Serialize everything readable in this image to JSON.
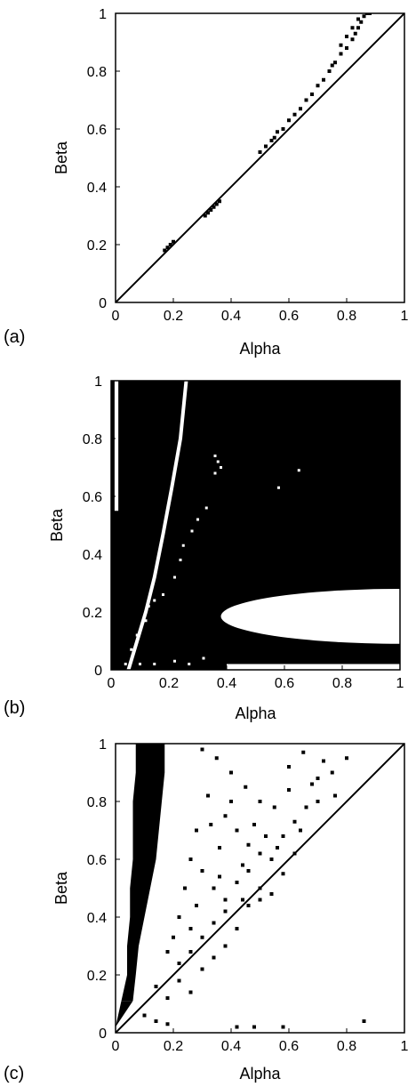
{
  "chart_data": [
    {
      "panel": "(a)",
      "type": "scatter",
      "xlabel": "Alpha",
      "ylabel": "Beta",
      "xlim": [
        0,
        1
      ],
      "ylim": [
        0,
        1
      ],
      "xticks": [
        "0",
        "0.2",
        "0.4",
        "0.6",
        "0.8",
        "1"
      ],
      "yticks": [
        "0",
        "0.2",
        "0.4",
        "0.6",
        "0.8",
        "1"
      ],
      "grid": false,
      "diagonal_line": true,
      "points": [
        [
          0.17,
          0.18
        ],
        [
          0.18,
          0.19
        ],
        [
          0.19,
          0.2
        ],
        [
          0.2,
          0.21
        ],
        [
          0.31,
          0.3
        ],
        [
          0.32,
          0.31
        ],
        [
          0.33,
          0.32
        ],
        [
          0.34,
          0.33
        ],
        [
          0.35,
          0.34
        ],
        [
          0.36,
          0.35
        ],
        [
          0.5,
          0.52
        ],
        [
          0.52,
          0.54
        ],
        [
          0.54,
          0.56
        ],
        [
          0.55,
          0.57
        ],
        [
          0.56,
          0.59
        ],
        [
          0.58,
          0.6
        ],
        [
          0.6,
          0.63
        ],
        [
          0.62,
          0.65
        ],
        [
          0.64,
          0.67
        ],
        [
          0.66,
          0.7
        ],
        [
          0.68,
          0.72
        ],
        [
          0.7,
          0.75
        ],
        [
          0.72,
          0.77
        ],
        [
          0.74,
          0.8
        ],
        [
          0.75,
          0.82
        ],
        [
          0.76,
          0.83
        ],
        [
          0.78,
          0.86
        ],
        [
          0.8,
          0.88
        ],
        [
          0.82,
          0.91
        ],
        [
          0.83,
          0.93
        ],
        [
          0.84,
          0.95
        ],
        [
          0.85,
          0.97
        ],
        [
          0.86,
          0.99
        ],
        [
          0.87,
          1.0
        ],
        [
          0.88,
          1.0
        ],
        [
          0.84,
          0.98
        ],
        [
          0.82,
          0.95
        ],
        [
          0.8,
          0.92
        ],
        [
          0.78,
          0.89
        ]
      ]
    },
    {
      "panel": "(b)",
      "type": "heatmap",
      "xlabel": "Alpha",
      "ylabel": "Beta",
      "xlim": [
        0,
        1
      ],
      "ylim": [
        0,
        1
      ],
      "xticks": [
        "0",
        "0.2",
        "0.4",
        "0.6",
        "0.8",
        "1"
      ],
      "yticks": [
        "0",
        "0.2",
        "0.4",
        "0.6",
        "0.8",
        "1"
      ],
      "background": "#000000",
      "white_regions": {
        "left_stripe": {
          "alpha_range": [
            0.012,
            0.025
          ],
          "beta_range": [
            0.55,
            1.0
          ]
        },
        "curve_x_vs_beta": [
          [
            0.06,
            0.0
          ],
          [
            0.09,
            0.1
          ],
          [
            0.12,
            0.2
          ],
          [
            0.15,
            0.32
          ],
          [
            0.18,
            0.47
          ],
          [
            0.21,
            0.63
          ],
          [
            0.24,
            0.8
          ],
          [
            0.26,
            1.0
          ]
        ],
        "ellipse": {
          "alpha_start": 0.38,
          "alpha_end": 1.0,
          "beta_center": 0.185,
          "beta_halfwidth": 0.095
        },
        "bottom_strip": {
          "alpha_range": [
            0.4,
            1.0
          ],
          "beta_range": [
            0.0,
            0.02
          ]
        }
      },
      "white_points": [
        [
          0.36,
          0.74
        ],
        [
          0.37,
          0.72
        ],
        [
          0.38,
          0.7
        ],
        [
          0.36,
          0.68
        ],
        [
          0.65,
          0.69
        ],
        [
          0.58,
          0.63
        ],
        [
          0.33,
          0.56
        ],
        [
          0.3,
          0.52
        ],
        [
          0.28,
          0.48
        ],
        [
          0.25,
          0.43
        ],
        [
          0.24,
          0.38
        ],
        [
          0.22,
          0.32
        ],
        [
          0.18,
          0.26
        ],
        [
          0.15,
          0.24
        ],
        [
          0.13,
          0.22
        ],
        [
          0.12,
          0.17
        ],
        [
          0.09,
          0.12
        ],
        [
          0.07,
          0.07
        ],
        [
          0.05,
          0.02
        ],
        [
          0.1,
          0.02
        ],
        [
          0.15,
          0.02
        ],
        [
          0.22,
          0.03
        ],
        [
          0.27,
          0.02
        ],
        [
          0.32,
          0.04
        ]
      ]
    },
    {
      "panel": "(c)",
      "type": "scatter",
      "xlabel": "Alpha",
      "ylabel": "Beta",
      "xlim": [
        0,
        1
      ],
      "ylim": [
        0,
        1
      ],
      "xticks": [
        "0",
        "0.2",
        "0.4",
        "0.6",
        "0.8",
        "1"
      ],
      "yticks": [
        "0",
        "0.2",
        "0.4",
        "0.6",
        "0.8",
        "1"
      ],
      "diagonal_line": true,
      "dense_band": [
        [
          0.0,
          0.0,
          0.02
        ],
        [
          0.02,
          0.06,
          0.11
        ],
        [
          0.04,
          0.07,
          0.2
        ],
        [
          0.04,
          0.08,
          0.3
        ],
        [
          0.05,
          0.1,
          0.4
        ],
        [
          0.05,
          0.12,
          0.5
        ],
        [
          0.06,
          0.14,
          0.6
        ],
        [
          0.06,
          0.15,
          0.7
        ],
        [
          0.06,
          0.16,
          0.8
        ],
        [
          0.07,
          0.17,
          0.9
        ],
        [
          0.07,
          0.17,
          1.0
        ]
      ],
      "points": [
        [
          0.3,
          0.98
        ],
        [
          0.35,
          0.95
        ],
        [
          0.4,
          0.9
        ],
        [
          0.45,
          0.85
        ],
        [
          0.5,
          0.8
        ],
        [
          0.55,
          0.78
        ],
        [
          0.6,
          0.92
        ],
        [
          0.65,
          0.97
        ],
        [
          0.7,
          0.88
        ],
        [
          0.75,
          0.9
        ],
        [
          0.8,
          0.95
        ],
        [
          0.32,
          0.82
        ],
        [
          0.38,
          0.75
        ],
        [
          0.42,
          0.7
        ],
        [
          0.46,
          0.65
        ],
        [
          0.5,
          0.62
        ],
        [
          0.54,
          0.6
        ],
        [
          0.58,
          0.68
        ],
        [
          0.62,
          0.73
        ],
        [
          0.66,
          0.78
        ],
        [
          0.7,
          0.8
        ],
        [
          0.26,
          0.6
        ],
        [
          0.3,
          0.56
        ],
        [
          0.34,
          0.5
        ],
        [
          0.38,
          0.46
        ],
        [
          0.42,
          0.52
        ],
        [
          0.46,
          0.56
        ],
        [
          0.5,
          0.5
        ],
        [
          0.54,
          0.48
        ],
        [
          0.58,
          0.55
        ],
        [
          0.62,
          0.62
        ],
        [
          0.22,
          0.4
        ],
        [
          0.26,
          0.36
        ],
        [
          0.3,
          0.33
        ],
        [
          0.34,
          0.38
        ],
        [
          0.38,
          0.42
        ],
        [
          0.42,
          0.36
        ],
        [
          0.46,
          0.44
        ],
        [
          0.5,
          0.46
        ],
        [
          0.18,
          0.28
        ],
        [
          0.22,
          0.24
        ],
        [
          0.26,
          0.28
        ],
        [
          0.3,
          0.22
        ],
        [
          0.34,
          0.26
        ],
        [
          0.38,
          0.3
        ],
        [
          0.14,
          0.16
        ],
        [
          0.18,
          0.12
        ],
        [
          0.22,
          0.18
        ],
        [
          0.26,
          0.14
        ],
        [
          0.1,
          0.06
        ],
        [
          0.14,
          0.04
        ],
        [
          0.18,
          0.03
        ],
        [
          0.42,
          0.02
        ],
        [
          0.48,
          0.02
        ],
        [
          0.58,
          0.02
        ],
        [
          0.86,
          0.04
        ],
        [
          0.28,
          0.7
        ],
        [
          0.36,
          0.64
        ],
        [
          0.44,
          0.58
        ],
        [
          0.52,
          0.68
        ],
        [
          0.6,
          0.84
        ],
        [
          0.68,
          0.86
        ],
        [
          0.72,
          0.94
        ],
        [
          0.48,
          0.72
        ],
        [
          0.4,
          0.8
        ],
        [
          0.33,
          0.72
        ],
        [
          0.24,
          0.5
        ],
        [
          0.2,
          0.33
        ],
        [
          0.28,
          0.44
        ],
        [
          0.36,
          0.54
        ],
        [
          0.44,
          0.46
        ],
        [
          0.56,
          0.64
        ],
        [
          0.64,
          0.7
        ],
        [
          0.76,
          0.82
        ]
      ]
    }
  ],
  "panel_labels": [
    "(a)",
    "(b)",
    "(c)"
  ],
  "style": {
    "fg": "#000000",
    "bg": "#ffffff"
  }
}
